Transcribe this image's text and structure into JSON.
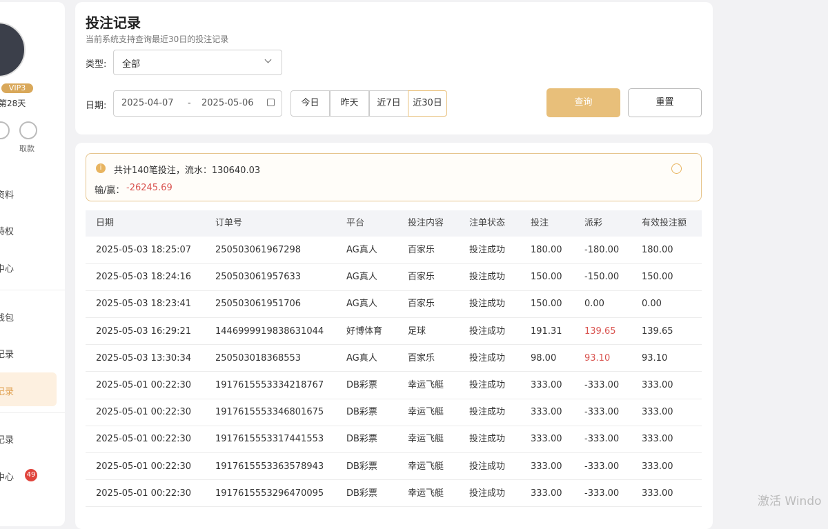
{
  "sidebar": {
    "vip": "VIP3",
    "days": "第28天",
    "withdraw": "取款",
    "items": [
      "资料",
      "特权",
      "中心",
      "钱包",
      "记录",
      "记录",
      "记录",
      "中心"
    ],
    "badge": "49"
  },
  "header": {
    "title": "投注记录",
    "subtitle": "当前系统支持查询最近30日的投注记录"
  },
  "filters": {
    "type_label": "类型:",
    "type_value": "全部",
    "date_label": "日期:",
    "start_date": "2025-04-07",
    "separator": "-",
    "end_date": "2025-05-06",
    "quick": [
      "今日",
      "昨天",
      "近7日",
      "近30日"
    ],
    "search": "查询",
    "reset": "重置"
  },
  "summary": {
    "line1": "共计140笔投注，流水：130640.03",
    "winloss_label": "输/赢：",
    "winloss_value": "-26245.69"
  },
  "table": {
    "headers": [
      "日期",
      "订单号",
      "平台",
      "投注内容",
      "注单状态",
      "投注",
      "派彩",
      "有效投注额"
    ],
    "rows": [
      [
        "2025-05-03 18:25:07",
        "250503061967298",
        "AG真人",
        "百家乐",
        "投注成功",
        "180.00",
        "-180.00",
        "180.00"
      ],
      [
        "2025-05-03 18:24:16",
        "250503061957633",
        "AG真人",
        "百家乐",
        "投注成功",
        "150.00",
        "-150.00",
        "150.00"
      ],
      [
        "2025-05-03 18:23:41",
        "250503061951706",
        "AG真人",
        "百家乐",
        "投注成功",
        "150.00",
        "0.00",
        "0.00"
      ],
      [
        "2025-05-03 16:29:21",
        "1446999919838631044",
        "好博体育",
        "足球",
        "投注成功",
        "191.31",
        "139.65",
        "139.65"
      ],
      [
        "2025-05-03 13:30:34",
        "250503018368553",
        "AG真人",
        "百家乐",
        "投注成功",
        "98.00",
        "93.10",
        "93.10"
      ],
      [
        "2025-05-01 00:22:30",
        "1917615553334218767",
        "DB彩票",
        "幸运飞艇",
        "投注成功",
        "333.00",
        "-333.00",
        "333.00"
      ],
      [
        "2025-05-01 00:22:30",
        "1917615553346801675",
        "DB彩票",
        "幸运飞艇",
        "投注成功",
        "333.00",
        "-333.00",
        "333.00"
      ],
      [
        "2025-05-01 00:22:30",
        "1917615553317441553",
        "DB彩票",
        "幸运飞艇",
        "投注成功",
        "333.00",
        "-333.00",
        "333.00"
      ],
      [
        "2025-05-01 00:22:30",
        "1917615553363578943",
        "DB彩票",
        "幸运飞艇",
        "投注成功",
        "333.00",
        "-333.00",
        "333.00"
      ],
      [
        "2025-05-01 00:22:30",
        "1917615553296470095",
        "DB彩票",
        "幸运飞艇",
        "投注成功",
        "333.00",
        "-333.00",
        "333.00"
      ]
    ]
  },
  "watermark": "激活 Windo"
}
